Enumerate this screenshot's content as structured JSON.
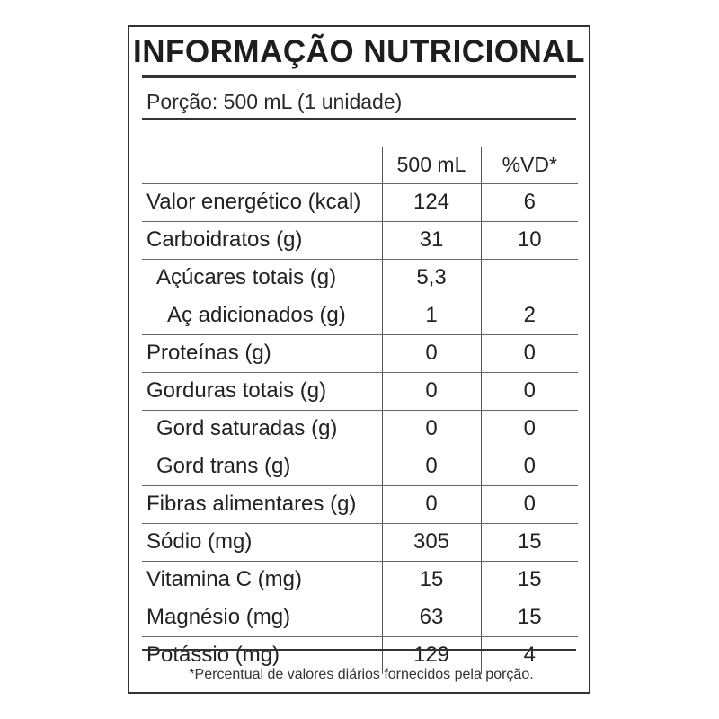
{
  "title": "INFORMAÇÃO NUTRICIONAL",
  "portion": "Porção: 500 mL (1 unidade)",
  "columns": {
    "amount": "500 mL",
    "dv": "%VD*"
  },
  "rows": [
    {
      "name": "Valor energético (kcal)",
      "amount": "124",
      "dv": "6"
    },
    {
      "name": "Carboidratos (g)",
      "amount": "31",
      "dv": "10"
    },
    {
      "name": "Açúcares totais (g)",
      "amount": "5,3",
      "dv": ""
    },
    {
      "name": "Aç adicionados (g)",
      "amount": "1",
      "dv": "2"
    },
    {
      "name": "Proteínas (g)",
      "amount": "0",
      "dv": "0"
    },
    {
      "name": "Gorduras totais (g)",
      "amount": "0",
      "dv": "0"
    },
    {
      "name": "Gord saturadas (g)",
      "amount": "0",
      "dv": "0"
    },
    {
      "name": "Gord trans (g)",
      "amount": "0",
      "dv": "0"
    },
    {
      "name": "Fibras alimentares (g)",
      "amount": "0",
      "dv": "0"
    },
    {
      "name": "Sódio (mg)",
      "amount": "305",
      "dv": "15"
    },
    {
      "name": "Vitamina C (mg)",
      "amount": "15",
      "dv": "15"
    },
    {
      "name": "Magnésio (mg)",
      "amount": "63",
      "dv": "15"
    },
    {
      "name": "Potássio (mg)",
      "amount": "129",
      "dv": "4"
    }
  ],
  "footnote": "*Percentual de valores diários fornecidos pela porção."
}
